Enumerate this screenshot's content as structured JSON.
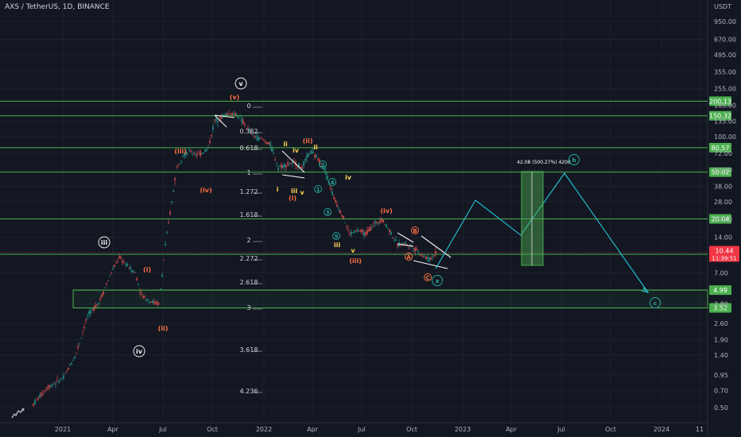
{
  "header": {
    "symbol": "AXS / TetherUS, 1D, BINANCE",
    "currency": "USDT"
  },
  "colors": {
    "background": "#131722",
    "grid": "#1e222d",
    "level_line": "#4caf50",
    "candle_up": "#26a69a",
    "candle_down": "#ef5350",
    "wave_orange": "#ff7043",
    "wave_yellow": "#ffd54f",
    "wave_blue": "#26a69a",
    "projection": "#26c6da",
    "price_tag": "#f23645",
    "label_green": "#4caf50"
  },
  "chart_data": {
    "type": "candlestick",
    "y_scale": "log",
    "y_range": [
      0.4,
      1300
    ],
    "y_ticks": [
      "950.00",
      "670.00",
      "495.00",
      "355.00",
      "255.00",
      "185.00",
      "135.00",
      "100.00",
      "72.00",
      "52.00",
      "38.00",
      "28.00",
      "20.00",
      "14.00",
      "7.00",
      "3.80",
      "2.60",
      "1.90",
      "1.40",
      "0.95",
      "0.70",
      "0.50"
    ],
    "x_ticks": [
      "2021",
      "Apr",
      "Jul",
      "Oct",
      "2022",
      "Apr",
      "Jul",
      "Oct",
      "2023",
      "Apr",
      "Jul",
      "Oct",
      "2024",
      "11"
    ],
    "support_levels": [
      {
        "value": 200.13,
        "label": "200.13"
      },
      {
        "value": 150.32,
        "label": "150.32"
      },
      {
        "value": 80.57,
        "label": "80.57"
      },
      {
        "value": 50.02,
        "label": "50.02"
      },
      {
        "value": 20.04,
        "label": "20.04"
      },
      {
        "value": 10.05,
        "label": "10.05"
      },
      {
        "value": 4.99,
        "label": "4.99"
      },
      {
        "value": 3.52,
        "label": "3.52"
      }
    ],
    "current_price": {
      "value": 10.44,
      "label": "10.44",
      "countdown": "11:39:51"
    },
    "fib_levels": [
      "0",
      "0.382",
      "0.618",
      "1",
      "1.272",
      "1.618",
      "2",
      "2.272",
      "2.618",
      "3",
      "3.618",
      "4.236"
    ],
    "measure_label": "42.08 (500.27%) 4208",
    "wave_labels": [
      {
        "text": "(v)",
        "color": "orange"
      },
      {
        "text": "(iii)",
        "color": "orange"
      },
      {
        "text": "(iv)",
        "color": "orange"
      },
      {
        "text": "(i)",
        "color": "orange"
      },
      {
        "text": "(ii)",
        "color": "orange"
      },
      {
        "text": "(i)",
        "color": "orange"
      },
      {
        "text": "(ii)",
        "color": "orange"
      },
      {
        "text": "(iii)",
        "color": "orange"
      },
      {
        "text": "(iv)",
        "color": "orange"
      },
      {
        "text": "ii",
        "color": "yellow"
      },
      {
        "text": "iv",
        "color": "yellow"
      },
      {
        "text": "ii",
        "color": "yellow"
      },
      {
        "text": "i",
        "color": "yellow"
      },
      {
        "text": "iii",
        "color": "yellow"
      },
      {
        "text": "v",
        "color": "yellow"
      },
      {
        "text": "iv",
        "color": "yellow"
      },
      {
        "text": "v",
        "color": "yellow"
      },
      {
        "text": "iii",
        "color": "yellow"
      },
      {
        "text": "v",
        "color": "white"
      },
      {
        "text": "iii",
        "color": "white"
      },
      {
        "text": "iv",
        "color": "white"
      },
      {
        "text": "2",
        "color": "blue"
      },
      {
        "text": "1",
        "color": "blue"
      },
      {
        "text": "4",
        "color": "blue"
      },
      {
        "text": "3",
        "color": "blue"
      },
      {
        "text": "5",
        "color": "blue"
      },
      {
        "text": "B",
        "color": "orange"
      },
      {
        "text": "A",
        "color": "orange"
      },
      {
        "text": "C",
        "color": "orange"
      },
      {
        "text": "a",
        "color": "blue"
      },
      {
        "text": "b",
        "color": "blue"
      },
      {
        "text": "c",
        "color": "blue"
      }
    ]
  }
}
